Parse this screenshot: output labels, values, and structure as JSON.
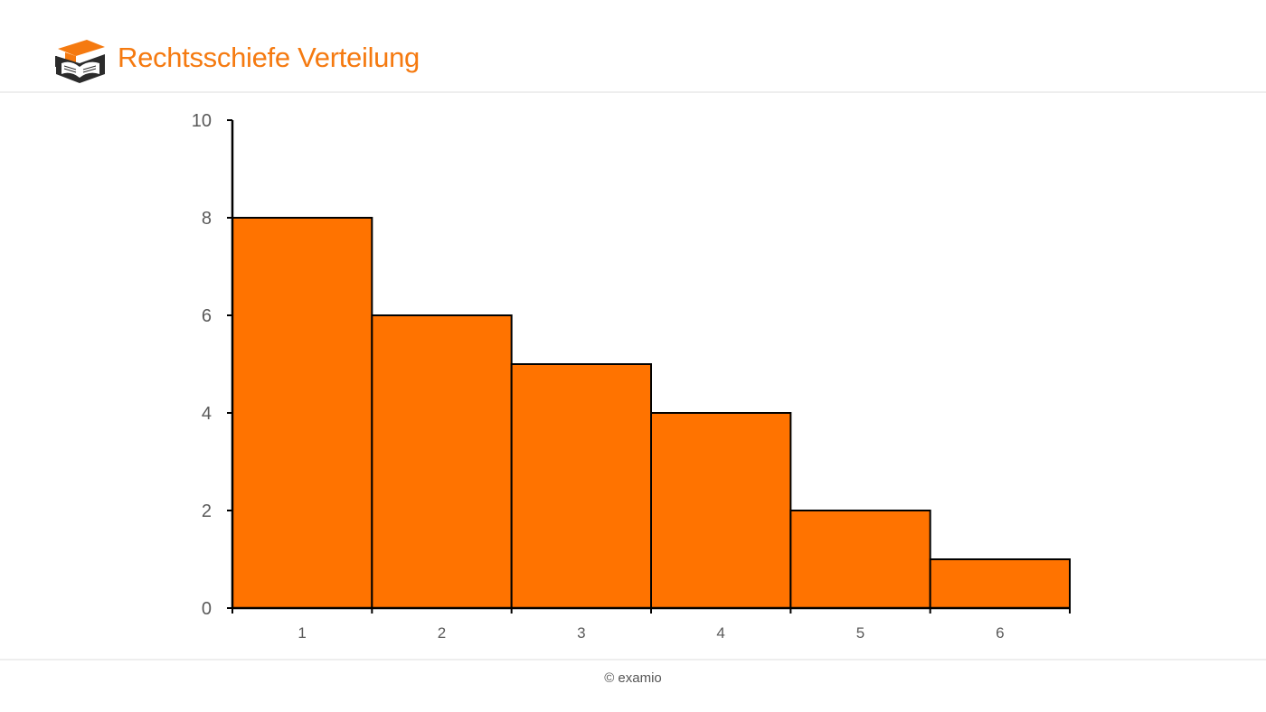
{
  "header": {
    "title": "Rechtsschiefe Verteilung",
    "logo_icon": "graduation-cap-book-icon",
    "accent_color": "#f57a10"
  },
  "chart_data": {
    "type": "bar",
    "categories": [
      "1",
      "2",
      "3",
      "4",
      "5",
      "6"
    ],
    "values": [
      8,
      6,
      5,
      4,
      2,
      1
    ],
    "title": "",
    "xlabel": "",
    "ylabel": "",
    "ylim": [
      0,
      10
    ],
    "yticks": [
      "0",
      "2",
      "4",
      "6",
      "8",
      "10"
    ],
    "bar_color": "#ff7300",
    "bar_edge_color": "#000000",
    "grid": false,
    "legend": "none"
  },
  "footer": {
    "copyright": "© examio"
  }
}
